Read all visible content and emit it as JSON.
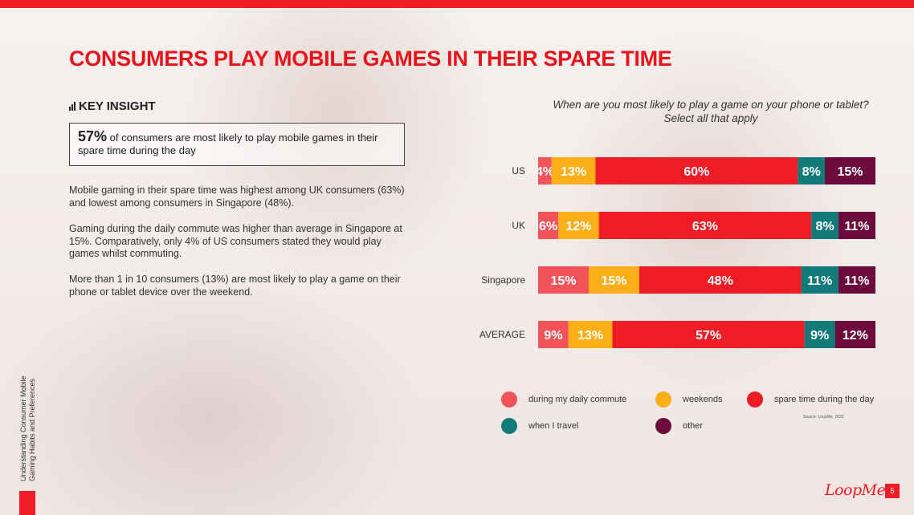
{
  "page": {
    "title": "CONSUMERS PLAY MOBILE GAMES IN THEIR SPARE TIME",
    "key_insight_heading": "KEY INSIGHT",
    "insight_value": "57%",
    "insight_text": " of consumers are most likely to play mobile games in their spare time during the day",
    "paragraphs": [
      "Mobile gaming in their spare time was highest among UK consumers (63%) and lowest among consumers in Singapore (48%).",
      "Gaming during the daily commute was higher than average in Singapore at 15%. Comparatively, only 4% of US consumers stated they would play games whilst commuting.",
      "More than 1 in 10 consumers (13%) are most likely to play a game on their phone or tablet device over the weekend."
    ],
    "side_label_line1": "Understanding Consumer Mobile",
    "side_label_line2": "Gaming Habits and Preferences",
    "source": "Source: LoopMe, 2022",
    "logo": "LoopMe",
    "page_number": "5"
  },
  "colors": {
    "accent": "#ee1c25",
    "commute": "#f0545a",
    "weekends": "#fbae17",
    "spare_time": "#ee1c25",
    "travel": "#137a7a",
    "other": "#6c0b3b"
  },
  "chart_data": {
    "type": "bar",
    "orientation": "horizontal-stacked",
    "title": "When are you most likely to play a game on your phone or tablet? Select all that apply",
    "title_line1": "When are you most likely to play a game on your phone or tablet?",
    "title_line2": "Select all that apply",
    "categories": [
      "US",
      "UK",
      "Singapore",
      "AVERAGE"
    ],
    "series": [
      {
        "name": "during my daily commute",
        "color": "#f0545a",
        "values": [
          4,
          6,
          15,
          9
        ]
      },
      {
        "name": "weekends",
        "color": "#fbae17",
        "values": [
          13,
          12,
          15,
          13
        ]
      },
      {
        "name": "spare time during the day",
        "color": "#ee1c25",
        "values": [
          60,
          63,
          48,
          57
        ]
      },
      {
        "name": "when I travel",
        "color": "#137a7a",
        "values": [
          8,
          8,
          11,
          9
        ]
      },
      {
        "name": "other",
        "color": "#6c0b3b",
        "values": [
          15,
          11,
          11,
          12
        ]
      }
    ],
    "value_suffix": "%",
    "legend_position": "bottom",
    "legend_order": [
      0,
      1,
      2,
      3,
      4
    ],
    "grid": false
  }
}
